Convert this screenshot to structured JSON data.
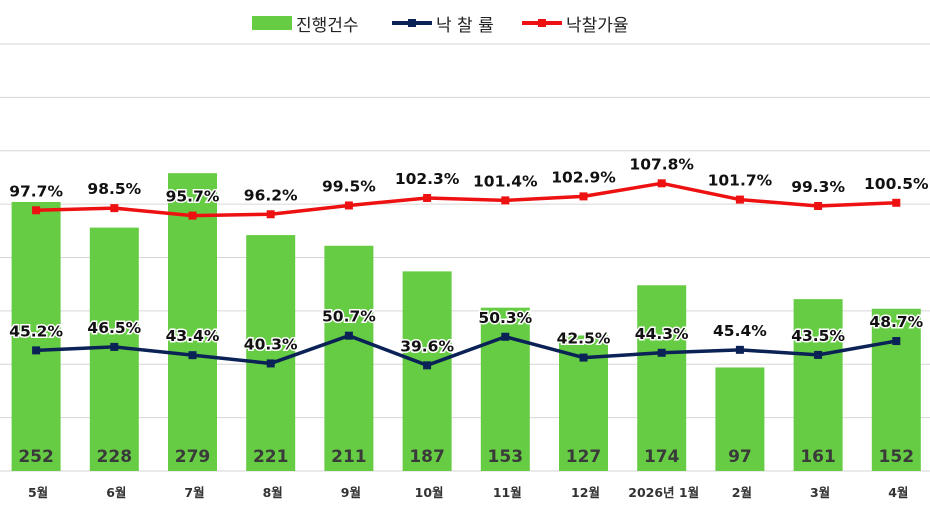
{
  "legend": {
    "bar_label": "진행건수",
    "rate_label": "낙 찰 률",
    "price_label": "낙찰가율"
  },
  "colors": {
    "bar": "#66cc44",
    "rate_line": "#0b2257",
    "price_line": "#ee1111",
    "bar_value_text": "#3a3a3a",
    "gridline": "#d6d6d6"
  },
  "chart_data": {
    "type": "bar",
    "categories": [
      "5월",
      "6월",
      "7월",
      "8월",
      "9월",
      "10월",
      "11월",
      "12월",
      "2026년 1월",
      "2월",
      "3월",
      "4월"
    ],
    "series": [
      {
        "name": "진행건수",
        "type": "bar",
        "values": [
          252,
          228,
          279,
          221,
          211,
          187,
          153,
          127,
          174,
          97,
          161,
          152
        ]
      },
      {
        "name": "낙 찰 률",
        "type": "line",
        "unit": "%",
        "values": [
          45.2,
          46.5,
          43.4,
          40.3,
          50.7,
          39.6,
          50.3,
          42.5,
          44.3,
          45.4,
          43.5,
          48.7
        ]
      },
      {
        "name": "낙찰가율",
        "type": "line",
        "unit": "%",
        "values": [
          97.7,
          98.5,
          95.7,
          96.2,
          99.5,
          102.3,
          101.4,
          102.9,
          107.8,
          101.7,
          99.3,
          100.5
        ]
      }
    ],
    "bar_ylim": [
      0,
      400
    ],
    "line_ylim": [
      0,
      160
    ],
    "grid": true,
    "legend_position": "top-center"
  }
}
